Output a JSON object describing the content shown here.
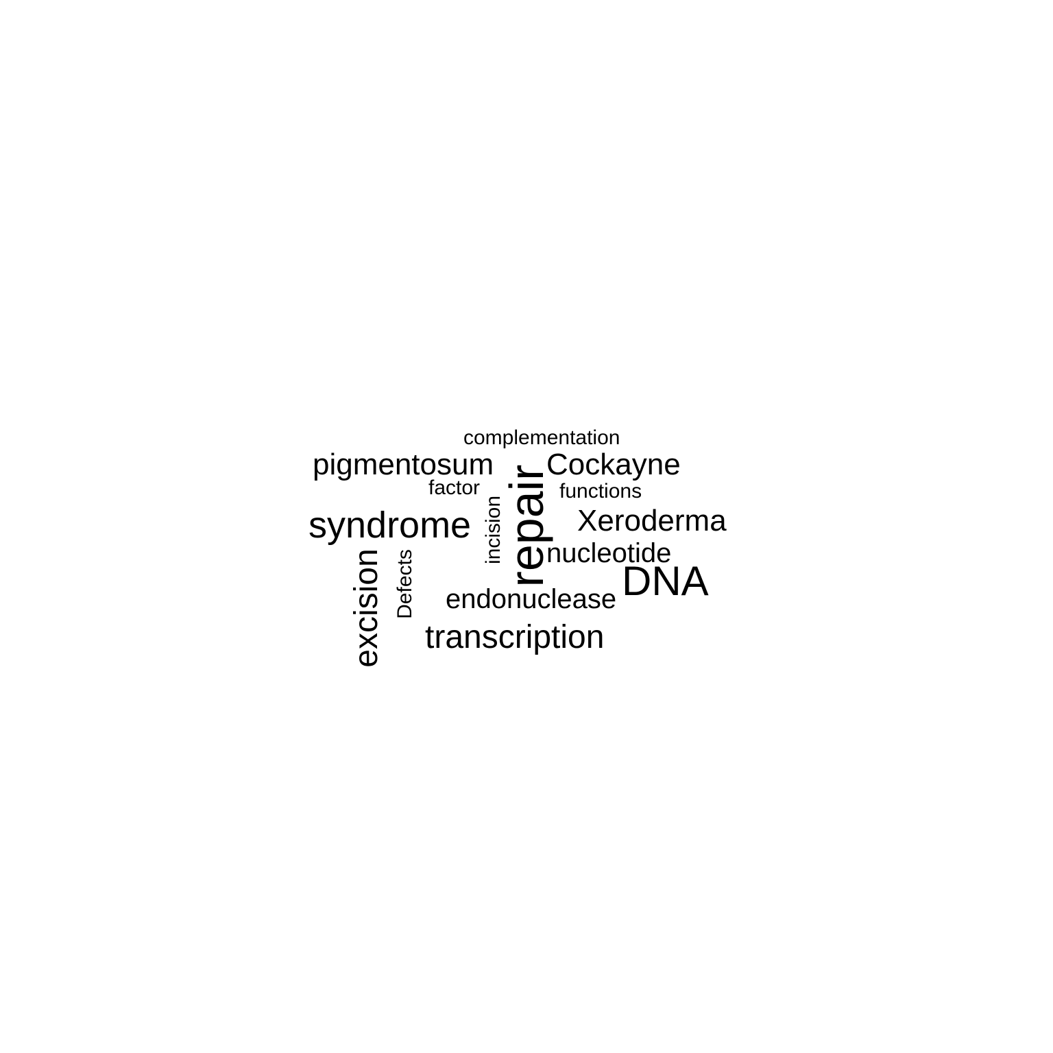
{
  "words": {
    "complementation": "complementation",
    "pigmentosum": "pigmentosum",
    "cockayne": "Cockayne",
    "factor": "factor",
    "functions": "functions",
    "syndrome": "syndrome",
    "xeroderma": "Xeroderma",
    "nucleotide": "nucleotide",
    "dna": "DNA",
    "endonuclease": "endonuclease",
    "transcription": "transcription",
    "excision": "excision",
    "defects": "Defects",
    "incision": "incision",
    "repair": "repair"
  },
  "colors": {
    "text": "#000000",
    "background": "#ffffff"
  }
}
